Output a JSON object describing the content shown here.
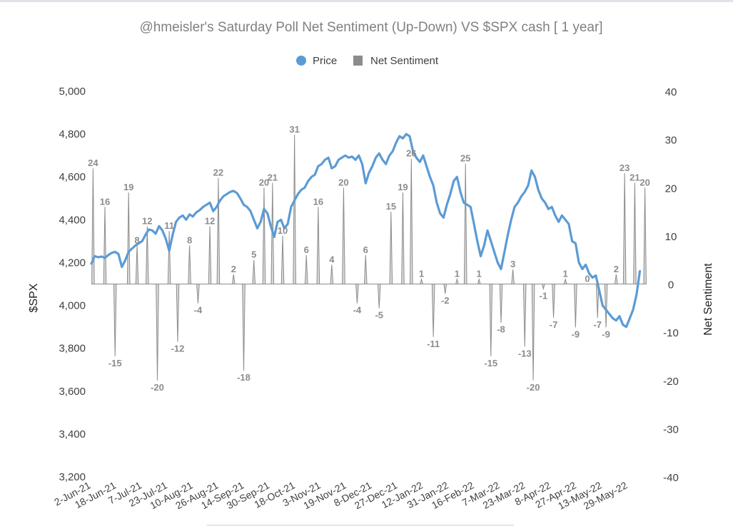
{
  "chart_data": {
    "type": "line+area",
    "title": "@hmeisler's Saturday Poll Net Sentiment (Up-Down) VS $SPX  cash [ 1 year]",
    "ylabel_left": "$SPX",
    "ylabel_right": "Net Sentiment",
    "ylim_left": [
      3200,
      5000
    ],
    "ylim_right": [
      -40,
      40
    ],
    "yticks_left": [
      "3,200",
      "3,400",
      "3,600",
      "3,800",
      "4,000",
      "4,200",
      "4,400",
      "4,600",
      "4,800",
      "5,000"
    ],
    "yticks_right": [
      "-40",
      "-30",
      "-20",
      "-10",
      "0",
      "10",
      "20",
      "30",
      "40"
    ],
    "x_tick_labels": [
      "2-Jun-21",
      "18-Jun-21",
      "7-Jul-21",
      "23-Jul-21",
      "10-Aug-21",
      "26-Aug-21",
      "14-Sep-21",
      "30-Sep-21",
      "18-Oct-21",
      "3-Nov-21",
      "19-Nov-21",
      "8-Dec-21",
      "27-Dec-21",
      "12-Jan-22",
      "31-Jan-22",
      "16-Feb-22",
      "7-Mar-22",
      "23-Mar-22",
      "8-Apr-22",
      "27-Apr-22",
      "13-May-22",
      "29-May-22"
    ],
    "legend": {
      "placement": "top-center",
      "entries": [
        "Price",
        "Net Sentiment"
      ]
    },
    "grid": false,
    "colors": {
      "price": "#5b9bd5",
      "sentiment_fill": "#d9d9d9",
      "sentiment_line": "#8c8c8c",
      "labels": "#8c8c8c"
    },
    "series": [
      {
        "name": "Price",
        "points": [
          [
            0,
            4195
          ],
          [
            1,
            4230
          ],
          [
            2,
            4225
          ],
          [
            3,
            4228
          ],
          [
            4,
            4222
          ],
          [
            5,
            4235
          ],
          [
            6,
            4245
          ],
          [
            7,
            4250
          ],
          [
            8,
            4240
          ],
          [
            9,
            4180
          ],
          [
            10,
            4210
          ],
          [
            11,
            4250
          ],
          [
            12,
            4265
          ],
          [
            13,
            4280
          ],
          [
            14,
            4290
          ],
          [
            15,
            4300
          ],
          [
            16,
            4330
          ],
          [
            17,
            4355
          ],
          [
            18,
            4350
          ],
          [
            19,
            4335
          ],
          [
            20,
            4370
          ],
          [
            21,
            4350
          ],
          [
            22,
            4310
          ],
          [
            23,
            4255
          ],
          [
            24,
            4330
          ],
          [
            25,
            4390
          ],
          [
            26,
            4410
          ],
          [
            27,
            4420
          ],
          [
            28,
            4400
          ],
          [
            29,
            4425
          ],
          [
            30,
            4415
          ],
          [
            31,
            4435
          ],
          [
            32,
            4445
          ],
          [
            33,
            4460
          ],
          [
            34,
            4470
          ],
          [
            35,
            4480
          ],
          [
            36,
            4440
          ],
          [
            37,
            4460
          ],
          [
            38,
            4490
          ],
          [
            39,
            4510
          ],
          [
            40,
            4520
          ],
          [
            41,
            4530
          ],
          [
            42,
            4535
          ],
          [
            43,
            4525
          ],
          [
            44,
            4500
          ],
          [
            45,
            4470
          ],
          [
            46,
            4460
          ],
          [
            47,
            4440
          ],
          [
            48,
            4400
          ],
          [
            49,
            4360
          ],
          [
            50,
            4390
          ],
          [
            51,
            4450
          ],
          [
            52,
            4430
          ],
          [
            53,
            4370
          ],
          [
            54,
            4320
          ],
          [
            55,
            4390
          ],
          [
            56,
            4400
          ],
          [
            57,
            4360
          ],
          [
            58,
            4380
          ],
          [
            59,
            4460
          ],
          [
            60,
            4490
          ],
          [
            61,
            4520
          ],
          [
            62,
            4540
          ],
          [
            63,
            4550
          ],
          [
            64,
            4580
          ],
          [
            65,
            4600
          ],
          [
            66,
            4610
          ],
          [
            67,
            4650
          ],
          [
            68,
            4660
          ],
          [
            69,
            4680
          ],
          [
            70,
            4690
          ],
          [
            71,
            4640
          ],
          [
            72,
            4650
          ],
          [
            73,
            4680
          ],
          [
            74,
            4690
          ],
          [
            75,
            4700
          ],
          [
            76,
            4690
          ],
          [
            77,
            4695
          ],
          [
            78,
            4680
          ],
          [
            79,
            4700
          ],
          [
            80,
            4660
          ],
          [
            81,
            4570
          ],
          [
            82,
            4620
          ],
          [
            83,
            4650
          ],
          [
            84,
            4690
          ],
          [
            85,
            4710
          ],
          [
            86,
            4680
          ],
          [
            87,
            4660
          ],
          [
            88,
            4700
          ],
          [
            89,
            4720
          ],
          [
            90,
            4760
          ],
          [
            91,
            4790
          ],
          [
            92,
            4780
          ],
          [
            93,
            4800
          ],
          [
            94,
            4790
          ],
          [
            95,
            4720
          ],
          [
            96,
            4690
          ],
          [
            97,
            4670
          ],
          [
            98,
            4700
          ],
          [
            99,
            4650
          ],
          [
            100,
            4600
          ],
          [
            101,
            4560
          ],
          [
            102,
            4480
          ],
          [
            103,
            4430
          ],
          [
            104,
            4410
          ],
          [
            105,
            4470
          ],
          [
            106,
            4520
          ],
          [
            107,
            4580
          ],
          [
            108,
            4600
          ],
          [
            109,
            4530
          ],
          [
            110,
            4480
          ],
          [
            111,
            4470
          ],
          [
            112,
            4460
          ],
          [
            113,
            4380
          ],
          [
            114,
            4300
          ],
          [
            115,
            4230
          ],
          [
            116,
            4280
          ],
          [
            117,
            4350
          ],
          [
            118,
            4300
          ],
          [
            119,
            4250
          ],
          [
            120,
            4200
          ],
          [
            121,
            4170
          ],
          [
            122,
            4250
          ],
          [
            123,
            4330
          ],
          [
            124,
            4400
          ],
          [
            125,
            4460
          ],
          [
            126,
            4480
          ],
          [
            127,
            4510
          ],
          [
            128,
            4530
          ],
          [
            129,
            4560
          ],
          [
            130,
            4630
          ],
          [
            131,
            4600
          ],
          [
            132,
            4540
          ],
          [
            133,
            4500
          ],
          [
            134,
            4480
          ],
          [
            135,
            4450
          ],
          [
            136,
            4460
          ],
          [
            137,
            4420
          ],
          [
            138,
            4390
          ],
          [
            139,
            4420
          ],
          [
            140,
            4400
          ],
          [
            141,
            4380
          ],
          [
            142,
            4300
          ],
          [
            143,
            4290
          ],
          [
            144,
            4200
          ],
          [
            145,
            4170
          ],
          [
            146,
            4190
          ],
          [
            147,
            4150
          ],
          [
            148,
            4130
          ],
          [
            149,
            4140
          ],
          [
            150,
            4070
          ],
          [
            151,
            4000
          ],
          [
            152,
            3980
          ],
          [
            153,
            3960
          ],
          [
            154,
            3940
          ],
          [
            155,
            3930
          ],
          [
            156,
            3950
          ],
          [
            157,
            3910
          ],
          [
            158,
            3900
          ],
          [
            159,
            3940
          ],
          [
            160,
            3980
          ],
          [
            161,
            4050
          ],
          [
            162,
            4160
          ]
        ]
      },
      {
        "name": "Net Sentiment",
        "points": [
          [
            0.5,
            24,
            "24"
          ],
          [
            4,
            16,
            "16"
          ],
          [
            7,
            -15,
            "-15"
          ],
          [
            11,
            19,
            "19"
          ],
          [
            13.5,
            8,
            "8"
          ],
          [
            16.5,
            12,
            "12"
          ],
          [
            19.5,
            -20,
            "-20"
          ],
          [
            23,
            11,
            "11"
          ],
          [
            25.5,
            -12,
            "-12"
          ],
          [
            29,
            8,
            "8"
          ],
          [
            31.5,
            -4,
            "-4"
          ],
          [
            35,
            12,
            "12"
          ],
          [
            37.5,
            22,
            "22"
          ],
          [
            42,
            2,
            "2"
          ],
          [
            45,
            -18,
            "-18"
          ],
          [
            48,
            5,
            "5"
          ],
          [
            51,
            20,
            "20"
          ],
          [
            53.5,
            21,
            "21"
          ],
          [
            56.5,
            10,
            "10"
          ],
          [
            60,
            31,
            "31"
          ],
          [
            63.5,
            6,
            "6"
          ],
          [
            67,
            16,
            "16"
          ],
          [
            71,
            4,
            "4"
          ],
          [
            74.5,
            20,
            "20"
          ],
          [
            78.5,
            -4,
            "-4"
          ],
          [
            81,
            6,
            "6"
          ],
          [
            85,
            -5,
            "-5"
          ],
          [
            88.5,
            15,
            "15"
          ],
          [
            92,
            19,
            "19"
          ],
          [
            94.5,
            26,
            "26"
          ],
          [
            97.5,
            1,
            "1"
          ],
          [
            101,
            -11,
            "-11"
          ],
          [
            104.5,
            -2,
            "-2"
          ],
          [
            108,
            1,
            "1"
          ],
          [
            110.5,
            25,
            "25"
          ],
          [
            114.5,
            1,
            "1"
          ],
          [
            118,
            -15,
            "-15"
          ],
          [
            121,
            -8,
            "-8"
          ],
          [
            124.5,
            3,
            "3"
          ],
          [
            128,
            -13,
            "-13"
          ],
          [
            130.5,
            -20,
            "-20"
          ],
          [
            133.5,
            -1,
            "-1"
          ],
          [
            136.5,
            -7,
            "-7"
          ],
          [
            140,
            1,
            "1"
          ],
          [
            143,
            -9,
            "-9"
          ],
          [
            146.5,
            0,
            "0"
          ],
          [
            149.5,
            -7,
            "-7"
          ],
          [
            152,
            -9,
            "-9"
          ],
          [
            155,
            2,
            "2"
          ],
          [
            157.5,
            23,
            "23"
          ],
          [
            160.5,
            21,
            "21"
          ],
          [
            163.5,
            20,
            "20"
          ]
        ]
      }
    ]
  }
}
